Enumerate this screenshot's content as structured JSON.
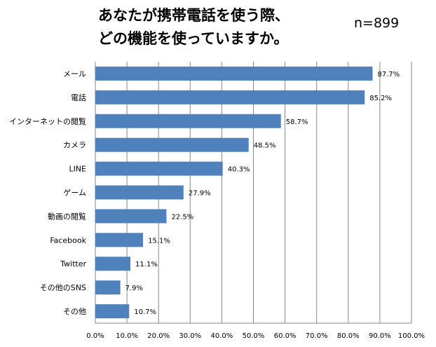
{
  "chart_data": {
    "type": "bar",
    "orientation": "horizontal",
    "title_lines": [
      "あなたが携帯電話を使う際、",
      "どの機能を使っていますか。"
    ],
    "annotation": "n=899",
    "categories": [
      "メール",
      "電話",
      "インターネットの閲覧",
      "カメラ",
      "LINE",
      "ゲーム",
      "動画の閲覧",
      "Facebook",
      "Twitter",
      "その他のSNS",
      "その他"
    ],
    "values": [
      87.7,
      85.2,
      58.7,
      48.5,
      40.3,
      27.9,
      22.5,
      15.1,
      11.1,
      7.9,
      10.7
    ],
    "data_labels": [
      "87.7%",
      "85.2%",
      "58.7%",
      "48.5%",
      "40.3%",
      "27.9%",
      "22.5%",
      "15.1%",
      "11.1%",
      "7.9%",
      "10.7%"
    ],
    "xlim": [
      0,
      100
    ],
    "x_ticks": [
      "0.0%",
      "10.0%",
      "20.0%",
      "30.0%",
      "40.0%",
      "50.0%",
      "60.0%",
      "70.0%",
      "80.0%",
      "90.0%",
      "100.0%"
    ],
    "grid": true,
    "bar_color": "#4F81BD",
    "grid_color": "#868686"
  }
}
